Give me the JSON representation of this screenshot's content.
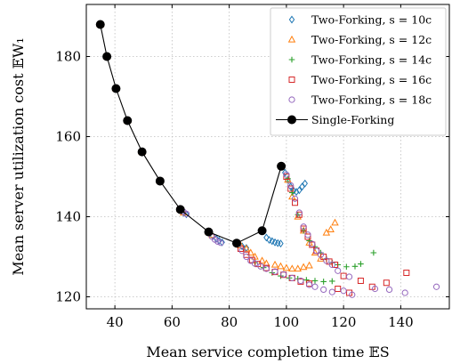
{
  "chart_data": {
    "type": "scatter",
    "xlabel": "Mean service completion time 𝔼S",
    "ylabel": "Mean server utilization cost 𝔼W₁",
    "xlim": [
      30,
      157
    ],
    "ylim": [
      117,
      193
    ],
    "xticks": [
      40,
      60,
      80,
      100,
      120,
      140
    ],
    "yticks": [
      120,
      140,
      160,
      180
    ],
    "grid": true,
    "legend_position": "top-right",
    "series": [
      {
        "name": "Two-Forking, s = 10c",
        "marker": "diamond",
        "color": "#1f77b4",
        "points": [
          [
            34.9,
            188
          ],
          [
            37.2,
            180
          ],
          [
            40.4,
            172
          ],
          [
            44.4,
            164
          ],
          [
            49.5,
            156.2
          ],
          [
            55.8,
            148.9
          ],
          [
            62.9,
            141.8
          ],
          [
            64,
            141
          ],
          [
            65,
            140.6
          ],
          [
            72.8,
            136.2
          ],
          [
            74.2,
            135.2
          ],
          [
            75.5,
            134.5
          ],
          [
            76.5,
            134
          ],
          [
            77.5,
            133.6
          ],
          [
            82.6,
            133.4
          ],
          [
            84.5,
            132.6
          ],
          [
            86,
            132.2
          ],
          [
            91.5,
            136.5
          ],
          [
            93,
            134.8
          ],
          [
            94,
            134.2
          ],
          [
            95,
            133.9
          ],
          [
            96,
            133.6
          ],
          [
            97,
            133.4
          ],
          [
            98,
            133.3
          ],
          [
            98.2,
            152.6
          ],
          [
            99.5,
            151
          ],
          [
            100.5,
            149.2
          ],
          [
            101.5,
            147.5
          ],
          [
            102.5,
            146.5
          ],
          [
            103.5,
            146.2
          ],
          [
            104.5,
            146.6
          ],
          [
            105.5,
            147.5
          ],
          [
            106.5,
            148.3
          ]
        ]
      },
      {
        "name": "Two-Forking, s = 12c",
        "marker": "triangle",
        "color": "#ff7f0e",
        "points": [
          [
            34.9,
            188
          ],
          [
            37.2,
            180
          ],
          [
            40.4,
            172
          ],
          [
            44.4,
            164
          ],
          [
            49.5,
            156.2
          ],
          [
            55.8,
            148.9
          ],
          [
            62.9,
            141.8
          ],
          [
            64,
            141
          ],
          [
            72.8,
            136.2
          ],
          [
            74,
            135.4
          ],
          [
            82.6,
            133.4
          ],
          [
            84,
            132.8
          ],
          [
            86,
            132
          ],
          [
            87.5,
            131
          ],
          [
            89,
            130
          ],
          [
            91.5,
            129
          ],
          [
            93,
            128.3
          ],
          [
            98.2,
            152.6
          ],
          [
            100.5,
            149.2
          ],
          [
            102,
            145
          ],
          [
            104,
            140
          ],
          [
            106,
            136.5
          ],
          [
            108,
            133.5
          ],
          [
            110,
            131
          ],
          [
            112,
            129.5
          ],
          [
            114,
            136
          ],
          [
            115.5,
            136.8
          ],
          [
            117,
            138.5
          ],
          [
            96,
            128
          ],
          [
            98,
            127.6
          ],
          [
            100,
            127.2
          ],
          [
            102,
            127
          ],
          [
            104,
            127
          ],
          [
            106,
            127.4
          ],
          [
            108,
            127.8
          ]
        ]
      },
      {
        "name": "Two-Forking, s = 14c",
        "marker": "plus",
        "color": "#2ca02c",
        "points": [
          [
            34.9,
            188
          ],
          [
            37.2,
            180
          ],
          [
            40.4,
            172
          ],
          [
            44.4,
            164
          ],
          [
            49.5,
            156.2
          ],
          [
            55.8,
            148.9
          ],
          [
            62.9,
            141.8
          ],
          [
            72.8,
            136.2
          ],
          [
            82.6,
            133.4
          ],
          [
            91.5,
            136.5
          ],
          [
            98.2,
            152.6
          ],
          [
            100.5,
            149.5
          ],
          [
            102,
            146
          ],
          [
            104,
            140.5
          ],
          [
            106,
            136.5
          ],
          [
            108,
            134
          ],
          [
            110,
            132.5
          ],
          [
            112,
            131
          ],
          [
            114,
            129.5
          ],
          [
            116,
            128.5
          ],
          [
            118,
            128
          ],
          [
            121,
            127.5
          ],
          [
            124,
            127.6
          ],
          [
            126,
            128.2
          ],
          [
            130.5,
            131
          ],
          [
            89,
            128.5
          ],
          [
            92,
            127.3
          ],
          [
            95,
            126
          ],
          [
            98,
            125.2
          ],
          [
            101,
            124.7
          ],
          [
            104,
            124.5
          ],
          [
            107,
            124.2
          ],
          [
            110,
            124
          ],
          [
            113,
            123.8
          ],
          [
            116,
            123.9
          ]
        ]
      },
      {
        "name": "Two-Forking, s = 16c",
        "marker": "square",
        "color": "#d62728",
        "points": [
          [
            34.9,
            188
          ],
          [
            37.2,
            180
          ],
          [
            40.4,
            172
          ],
          [
            44.4,
            164
          ],
          [
            49.5,
            156.2
          ],
          [
            55.8,
            148.9
          ],
          [
            62.9,
            141.8
          ],
          [
            72.8,
            136.2
          ],
          [
            82.6,
            133.4
          ],
          [
            84,
            132
          ],
          [
            86,
            130.5
          ],
          [
            88,
            129.2
          ],
          [
            90,
            128.2
          ],
          [
            93,
            127.2
          ],
          [
            96,
            126.2
          ],
          [
            99,
            125.5
          ],
          [
            102,
            124.7
          ],
          [
            105,
            123.8
          ],
          [
            108,
            123.3
          ],
          [
            91.5,
            136.5
          ],
          [
            98.2,
            152.6
          ],
          [
            100,
            150
          ],
          [
            101.5,
            147
          ],
          [
            103,
            143.5
          ],
          [
            104.5,
            140.5
          ],
          [
            106,
            137
          ],
          [
            107.5,
            135
          ],
          [
            109,
            133
          ],
          [
            110.5,
            131.5
          ],
          [
            113,
            130
          ],
          [
            115,
            128.8
          ],
          [
            117,
            128
          ],
          [
            120,
            125.2
          ],
          [
            118,
            122
          ],
          [
            122,
            121
          ],
          [
            126,
            124
          ],
          [
            130,
            122.5
          ],
          [
            135,
            123.5
          ],
          [
            142,
            126
          ]
        ]
      },
      {
        "name": "Two-Forking, s = 18c",
        "marker": "circle",
        "color": "#9467bd",
        "points": [
          [
            34.9,
            188
          ],
          [
            37.2,
            180
          ],
          [
            40.4,
            172
          ],
          [
            44.4,
            164
          ],
          [
            49.5,
            156.2
          ],
          [
            55.8,
            148.9
          ],
          [
            62.9,
            141.8
          ],
          [
            64,
            141.2
          ],
          [
            65,
            140.7
          ],
          [
            72.8,
            136.2
          ],
          [
            74,
            135
          ],
          [
            75,
            134.3
          ],
          [
            76,
            133.8
          ],
          [
            77,
            133.5
          ],
          [
            82.6,
            133.4
          ],
          [
            84.5,
            131.5
          ],
          [
            86,
            130
          ],
          [
            87.5,
            129
          ],
          [
            89,
            128.3
          ],
          [
            91,
            127.6
          ],
          [
            93,
            127
          ],
          [
            96,
            126.3
          ],
          [
            99,
            125.6
          ],
          [
            102,
            124.7
          ],
          [
            105,
            124
          ],
          [
            108,
            123
          ],
          [
            110,
            122.5
          ],
          [
            113,
            121.8
          ],
          [
            116,
            121.2
          ],
          [
            91.5,
            136.5
          ],
          [
            98.2,
            152.6
          ],
          [
            100,
            150.5
          ],
          [
            101.5,
            147.8
          ],
          [
            103,
            144.5
          ],
          [
            104.5,
            141
          ],
          [
            106,
            137.5
          ],
          [
            107.5,
            135.5
          ],
          [
            109,
            133.2
          ],
          [
            110.5,
            131.5
          ],
          [
            112,
            130.5
          ],
          [
            114,
            129
          ],
          [
            116,
            128
          ],
          [
            118,
            126.5
          ],
          [
            122,
            125
          ],
          [
            120,
            121.5
          ],
          [
            123,
            120.5
          ],
          [
            131,
            122
          ],
          [
            136,
            121.8
          ],
          [
            141.5,
            121
          ],
          [
            152.5,
            122.5
          ]
        ]
      },
      {
        "name": "Single-Forking",
        "marker": "filled-circle-line",
        "color": "#000000",
        "points": [
          [
            34.9,
            188
          ],
          [
            37.2,
            180
          ],
          [
            40.4,
            172
          ],
          [
            44.4,
            164
          ],
          [
            49.5,
            156.2
          ],
          [
            55.8,
            148.9
          ],
          [
            62.9,
            141.8
          ],
          [
            72.8,
            136.2
          ],
          [
            82.6,
            133.4
          ],
          [
            91.5,
            136.5
          ],
          [
            98.2,
            152.6
          ]
        ]
      }
    ]
  },
  "legend_labels": [
    "Two-Forking, s = 10c",
    "Two-Forking, s = 12c",
    "Two-Forking, s = 14c",
    "Two-Forking, s = 16c",
    "Two-Forking, s = 18c",
    "Single-Forking"
  ]
}
